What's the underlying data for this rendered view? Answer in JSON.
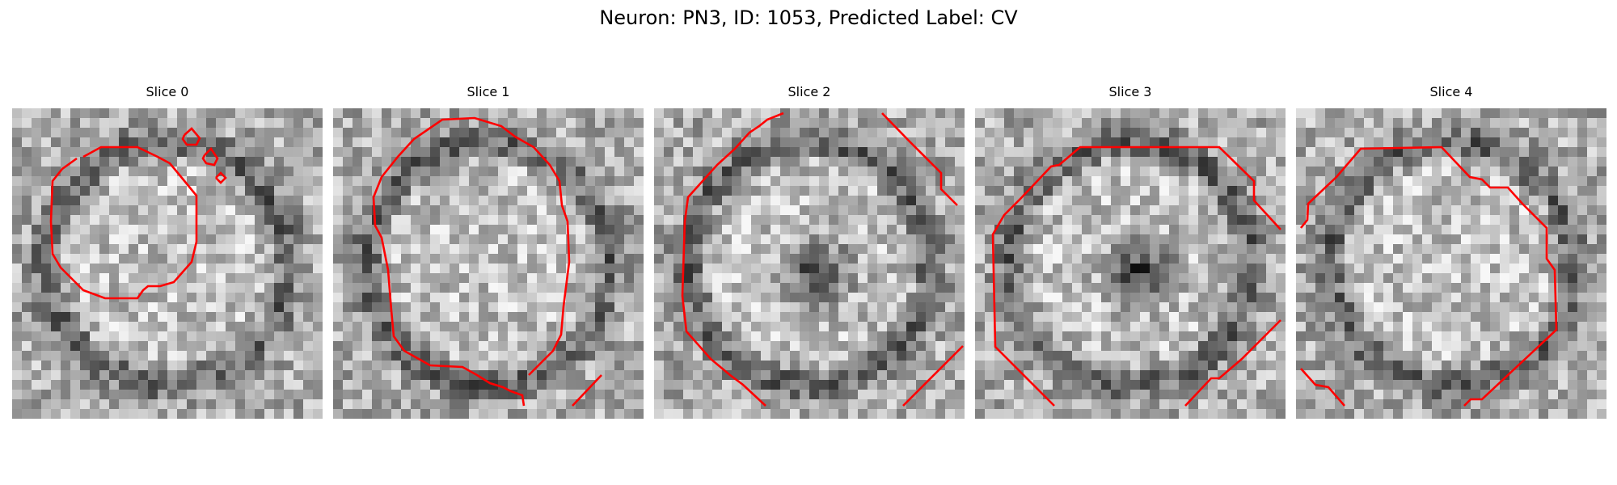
{
  "figure": {
    "title": "Neuron: PN3, ID: 1053, Predicted Label: CV",
    "panels": [
      {
        "title": "Slice 0",
        "dark_center": false
      },
      {
        "title": "Slice 1",
        "dark_center": false
      },
      {
        "title": "Slice 2",
        "dark_center": true
      },
      {
        "title": "Slice 3",
        "dark_center": true
      },
      {
        "title": "Slice 4",
        "dark_center": false
      }
    ],
    "colors": {
      "contour": "#ff0000",
      "background": "#ffffff",
      "image_colormap": "gray"
    }
  }
}
